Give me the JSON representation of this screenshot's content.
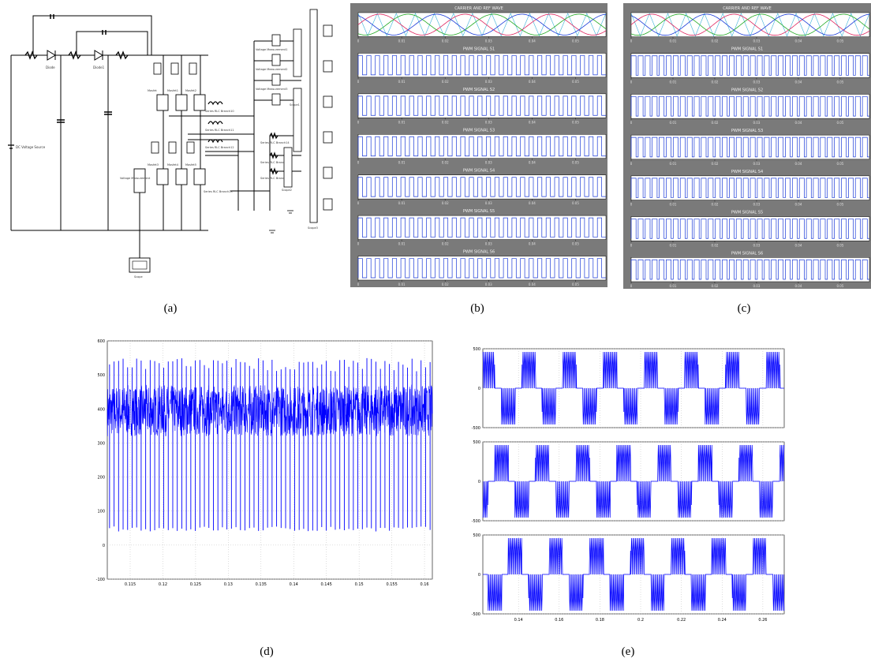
{
  "captions": {
    "a": "(a)",
    "b": "(b)",
    "c": "(c)",
    "d": "(d)",
    "e": "(e)"
  },
  "panel_a": {
    "source_label": "DC Voltage Source",
    "diode_labels": [
      "Diode",
      "Diode1"
    ],
    "mosfet_labels": [
      "Mosfet",
      "Mosfet1",
      "Mosfet2",
      "Mosfet3",
      "Mosfet4",
      "Mosfet5"
    ],
    "branch_labels": [
      "Series RLC Branch10",
      "Series RLC Branch11",
      "Series RLC Branch12",
      "Series RLC Branch13",
      "Series RLC Branch14",
      "Series RLC Branch15",
      "Series RLC Branch16"
    ],
    "voltage_meas_labels": [
      "Voltage Measurement",
      "Voltage Measurement1",
      "Voltage Measurement2",
      "Voltage Measurement3"
    ],
    "scope_labels": [
      "Scope",
      "Scope1",
      "Scope2",
      "Scope3"
    ]
  },
  "chart_data": [
    {
      "id": "b",
      "type": "line",
      "panels": [
        {
          "title": "CARRIER AND REF WAVE",
          "x_ticks": [
            "0",
            "0.01",
            "0.02",
            "0.03",
            "0.04",
            "0.05"
          ]
        },
        {
          "title": "PWM SIGNAL S1",
          "x_ticks": [
            "0",
            "0.01",
            "0.02",
            "0.03",
            "0.04",
            "0.05"
          ],
          "pulse_periods": 29,
          "duty": 0.5
        },
        {
          "title": "PWM SIGNAL S2",
          "x_ticks": [
            "0",
            "0.01",
            "0.02",
            "0.03",
            "0.04",
            "0.05"
          ],
          "pulse_periods": 29,
          "duty": 0.5
        },
        {
          "title": "PWM SIGNAL S3",
          "x_ticks": [
            "0",
            "0.01",
            "0.02",
            "0.03",
            "0.04",
            "0.05"
          ],
          "pulse_periods": 29,
          "duty": 0.5
        },
        {
          "title": "PWM SIGNAL S4",
          "x_ticks": [
            "0",
            "0.01",
            "0.02",
            "0.03",
            "0.04",
            "0.05"
          ],
          "pulse_periods": 29,
          "duty": 0.5
        },
        {
          "title": "PWM SIGNAL S5",
          "x_ticks": [
            "0",
            "0.01",
            "0.02",
            "0.03",
            "0.04",
            "0.05"
          ],
          "pulse_periods": 29,
          "duty": 0.5
        },
        {
          "title": "PWM SIGNAL S6",
          "x_ticks": [
            "0",
            "0.01",
            "0.02",
            "0.03",
            "0.04",
            "0.05"
          ],
          "pulse_periods": 29,
          "duty": 0.5
        }
      ]
    },
    {
      "id": "c",
      "type": "line",
      "panels": [
        {
          "title": "CARRIER AND REF WAVE",
          "x_ticks": [
            "0",
            "0.01",
            "0.02",
            "0.03",
            "0.04",
            "0.05"
          ]
        },
        {
          "title": "PWM SIGNAL S1",
          "x_ticks": [
            "0",
            "0.01",
            "0.02",
            "0.03",
            "0.04",
            "0.05"
          ],
          "pulse_periods": 34,
          "duty": 0.7
        },
        {
          "title": "PWM SIGNAL S2",
          "x_ticks": [
            "0",
            "0.01",
            "0.02",
            "0.03",
            "0.04",
            "0.05"
          ],
          "pulse_periods": 34,
          "duty": 0.7
        },
        {
          "title": "PWM SIGNAL S3",
          "x_ticks": [
            "0",
            "0.01",
            "0.02",
            "0.03",
            "0.04",
            "0.05"
          ],
          "pulse_periods": 34,
          "duty": 0.7
        },
        {
          "title": "PWM SIGNAL S4",
          "x_ticks": [
            "0",
            "0.01",
            "0.02",
            "0.03",
            "0.04",
            "0.05"
          ],
          "pulse_periods": 34,
          "duty": 0.7
        },
        {
          "title": "PWM SIGNAL S5",
          "x_ticks": [
            "0",
            "0.01",
            "0.02",
            "0.03",
            "0.04",
            "0.05"
          ],
          "pulse_periods": 34,
          "duty": 0.7
        },
        {
          "title": "PWM SIGNAL S6",
          "x_ticks": [
            "0",
            "0.01",
            "0.02",
            "0.03",
            "0.04",
            "0.05"
          ],
          "pulse_periods": 34,
          "duty": 0.7
        }
      ]
    },
    {
      "id": "d",
      "type": "line",
      "title": "",
      "xlabel": "",
      "ylabel": "",
      "xlim": [
        0.1115,
        0.1612
      ],
      "ylim": [
        -100,
        600
      ],
      "x_ticks": [
        "0.115",
        "0.12",
        "0.125",
        "0.13",
        "0.135",
        "0.14",
        "0.145",
        "0.15",
        "0.155",
        "0.16"
      ],
      "y_ticks": [
        "-100",
        "0",
        "100",
        "200",
        "300",
        "400",
        "500",
        "600"
      ],
      "series": [
        {
          "dc_level": 400,
          "upper_peak": 550,
          "lower_dip": 40,
          "band": [
            320,
            470
          ],
          "spike_count": 72
        }
      ],
      "grid": true,
      "color": "#0000ff"
    },
    {
      "id": "e",
      "type": "line",
      "xlim": [
        0.1225,
        0.2705
      ],
      "x_ticks": [
        "0.14",
        "0.16",
        "0.18",
        "0.2",
        "0.22",
        "0.24",
        "0.26"
      ],
      "grid": true,
      "color": "#0000ff",
      "subplots": [
        {
          "ylim": [
            -500,
            500
          ],
          "y_ticks": [
            "500",
            "0",
            "-500"
          ],
          "plateau": 300,
          "spike": 460,
          "period": 0.02,
          "phase": 0.0
        },
        {
          "ylim": [
            -500,
            500
          ],
          "y_ticks": [
            "500",
            "0",
            "-500"
          ],
          "plateau": 300,
          "spike": 460,
          "period": 0.02,
          "phase": 0.00667
        },
        {
          "ylim": [
            -500,
            500
          ],
          "y_ticks": [
            "500",
            "0",
            "-500"
          ],
          "plateau": 300,
          "spike": 460,
          "period": 0.02,
          "phase": 0.01333
        }
      ]
    }
  ]
}
